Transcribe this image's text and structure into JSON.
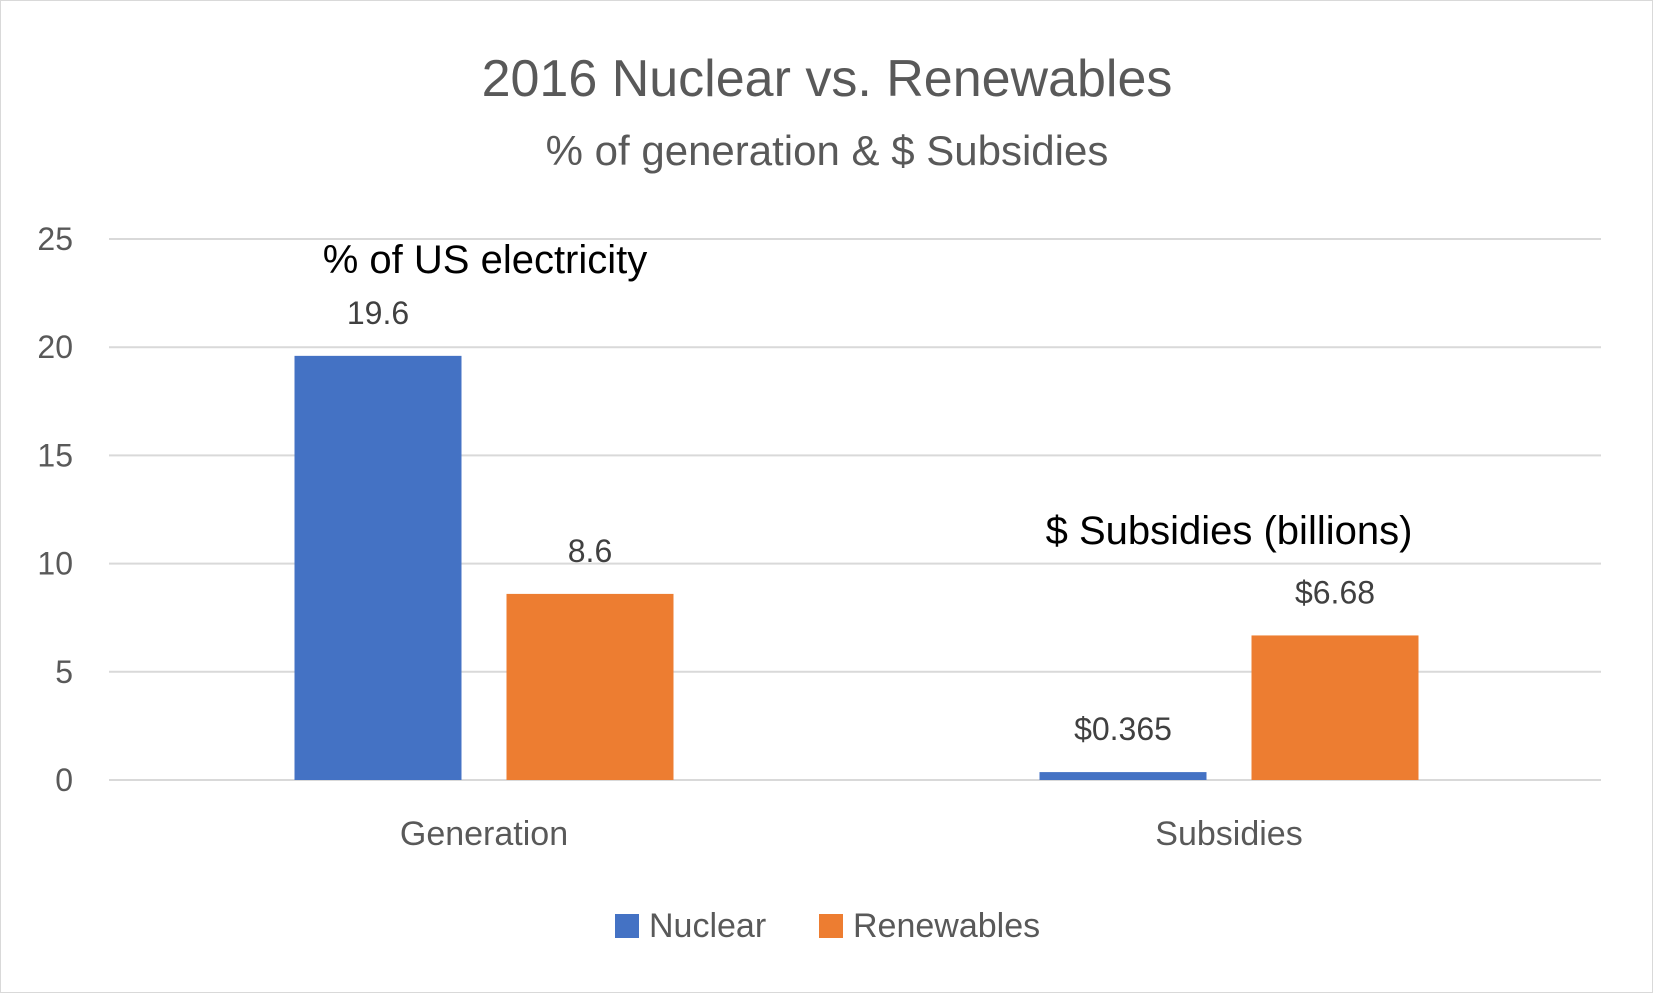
{
  "chart_data": {
    "type": "bar",
    "title": "2016 Nuclear vs. Renewables",
    "subtitle": "% of generation & $ Subsidies",
    "categories": [
      "Generation",
      "Subsidies"
    ],
    "series": [
      {
        "name": "Nuclear",
        "values": [
          19.6,
          0.365
        ],
        "labels": [
          "19.6",
          "$0.365"
        ],
        "color": "#4472C4"
      },
      {
        "name": "Renewables",
        "values": [
          8.6,
          6.68
        ],
        "labels": [
          "8.6",
          "$6.68"
        ],
        "color": "#ED7D31"
      }
    ],
    "ylim": [
      0,
      25
    ],
    "yticks": [
      0,
      5,
      10,
      15,
      20,
      25
    ],
    "grid": true,
    "legend_position": "bottom",
    "annotations": [
      "% of US electricity",
      "$ Subsidies (billions)"
    ]
  }
}
